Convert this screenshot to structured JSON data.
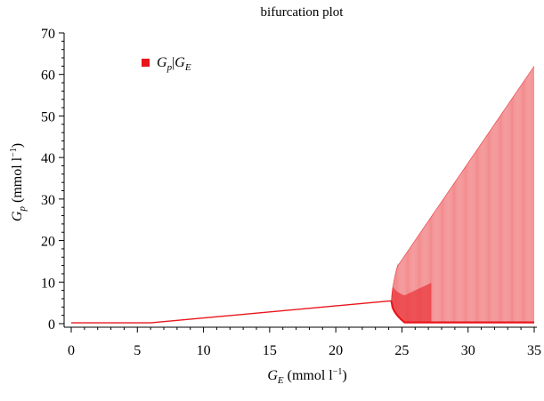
{
  "chart_data": {
    "type": "scatter",
    "title": "bifurcation plot",
    "xlabel": {
      "symbol": "G",
      "sub": "E",
      "unit": " (mmol l",
      "sup": "−1",
      "close": ")"
    },
    "ylabel": {
      "symbol": "G",
      "sub": "p",
      "unit": " (mmol l",
      "sup": "−1",
      "close": ")"
    },
    "xlim": [
      0,
      35
    ],
    "ylim": [
      0,
      70
    ],
    "xticks": [
      0,
      5,
      10,
      15,
      20,
      25,
      30,
      35
    ],
    "yticks": [
      0,
      10,
      20,
      30,
      40,
      50,
      60,
      70
    ],
    "xtick_labels": [
      "0",
      "5",
      "10",
      "15",
      "20",
      "25",
      "30",
      "35"
    ],
    "ytick_labels": [
      "0",
      "10",
      "20",
      "30",
      "40",
      "50",
      "60",
      "70"
    ],
    "grid": false,
    "legend": {
      "placement": "top-left",
      "entry": {
        "symbol": "G",
        "sub": "p",
        "sep": "|",
        "symbol2": "G",
        "sub2": "E"
      }
    },
    "series": [
      {
        "color": "#e8151b",
        "marker": "point",
        "stable_branch": {
          "x": [
            0,
            6,
            24.2
          ],
          "y": [
            0.2,
            0.2,
            5.5
          ]
        },
        "chaotic_region": {
          "x_start": 24.2,
          "x_end": 35,
          "y_onset": 5.5,
          "y_upper_at_end": 62,
          "y_lower": 0.3
        }
      }
    ]
  },
  "colors": {
    "series": "#e8151b",
    "axis": "#000000",
    "background": "#ffffff"
  }
}
